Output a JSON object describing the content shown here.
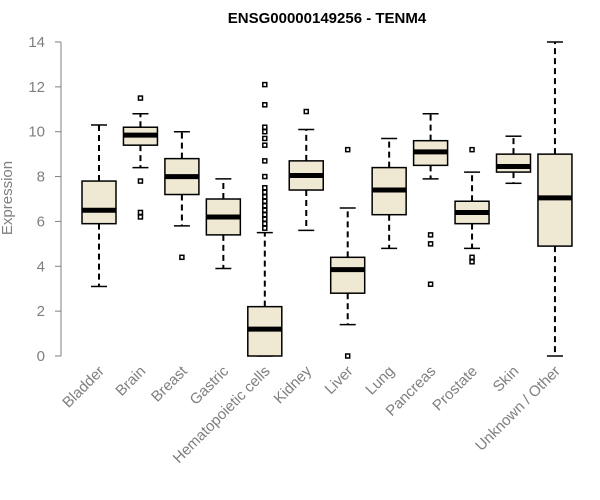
{
  "chart_data": {
    "type": "box",
    "title": "ENSG00000149256 - TENM4",
    "ylabel": "Expression",
    "xlabel": "",
    "ylim": [
      0,
      14
    ],
    "yticks": [
      0,
      2,
      4,
      6,
      8,
      10,
      12,
      14
    ],
    "grid": false,
    "colors": {
      "box_fill": "#efe8d2",
      "box_stroke": "#000000",
      "axis": "#7f7f7f",
      "title": "#000000"
    },
    "categories": [
      "Bladder",
      "Brain",
      "Breast",
      "Gastric",
      "Hematopoietic cells",
      "Kidney",
      "Liver",
      "Lung",
      "Pancreas",
      "Prostate",
      "Skin",
      "Unknown / Other"
    ],
    "boxes": [
      {
        "category": "Bladder",
        "min": 3.1,
        "q1": 5.9,
        "median": 6.5,
        "q3": 7.8,
        "max": 10.3,
        "outliers": []
      },
      {
        "category": "Brain",
        "min": 8.4,
        "q1": 9.4,
        "median": 9.85,
        "q3": 10.2,
        "max": 10.8,
        "outliers": [
          11.5,
          7.8,
          6.4,
          6.2
        ]
      },
      {
        "category": "Breast",
        "min": 5.8,
        "q1": 7.2,
        "median": 8.0,
        "q3": 8.8,
        "max": 10.0,
        "outliers": [
          4.4
        ]
      },
      {
        "category": "Gastric",
        "min": 3.9,
        "q1": 5.4,
        "median": 6.2,
        "q3": 7.0,
        "max": 7.9,
        "outliers": []
      },
      {
        "category": "Hematopoietic cells",
        "min": 0.0,
        "q1": 0.0,
        "median": 1.2,
        "q3": 2.2,
        "max": 5.5,
        "outliers": [
          12.1,
          11.2,
          10.2,
          10.0,
          9.7,
          9.4,
          8.7,
          8.0,
          7.5,
          7.3,
          7.1,
          6.9,
          6.7,
          6.5,
          6.3,
          6.1,
          5.9,
          5.7
        ]
      },
      {
        "category": "Kidney",
        "min": 5.6,
        "q1": 7.4,
        "median": 8.05,
        "q3": 8.7,
        "max": 10.1,
        "outliers": [
          10.9
        ]
      },
      {
        "category": "Liver",
        "min": 1.4,
        "q1": 2.8,
        "median": 3.85,
        "q3": 4.4,
        "max": 6.6,
        "outliers": [
          9.2,
          0.0
        ]
      },
      {
        "category": "Lung",
        "min": 4.8,
        "q1": 6.3,
        "median": 7.4,
        "q3": 8.4,
        "max": 9.7,
        "outliers": []
      },
      {
        "category": "Pancreas",
        "min": 7.9,
        "q1": 8.5,
        "median": 9.1,
        "q3": 9.6,
        "max": 10.8,
        "outliers": [
          5.4,
          5.0,
          3.2
        ]
      },
      {
        "category": "Prostate",
        "min": 4.8,
        "q1": 5.9,
        "median": 6.4,
        "q3": 6.9,
        "max": 8.2,
        "outliers": [
          9.2,
          4.4,
          4.2
        ]
      },
      {
        "category": "Skin",
        "min": 7.7,
        "q1": 8.2,
        "median": 8.45,
        "q3": 9.0,
        "max": 9.8,
        "outliers": []
      },
      {
        "category": "Unknown / Other",
        "min": 0.0,
        "q1": 4.9,
        "median": 7.05,
        "q3": 9.0,
        "max": 14.0,
        "outliers": []
      }
    ]
  }
}
